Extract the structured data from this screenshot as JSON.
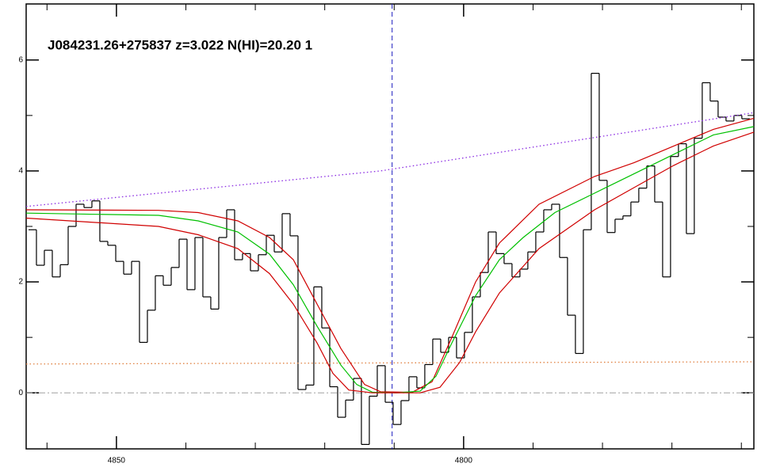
{
  "chart_data": {
    "type": "line",
    "title": "J084231.26+275837 z=3.022 N(HI)=20.20 1",
    "xlim": [
      4863,
      4758.2
    ],
    "ylim": [
      -1.01,
      7.01
    ],
    "xticks": [
      4850,
      4800
    ],
    "xminor": [
      4860,
      4840,
      4830,
      4820,
      4810,
      4790,
      4780,
      4770,
      4760
    ],
    "yticks": [
      0,
      2,
      4,
      6
    ],
    "yminor": [
      1,
      3,
      5
    ],
    "vline": {
      "x": 4810.3,
      "color": "#2020c0"
    },
    "hline": {
      "y": 0,
      "color": "#a0a0a0"
    },
    "series": [
      {
        "style": "steps",
        "color": "#000000",
        "x": [
          4862.09,
          4860.95,
          4859.81,
          4858.66,
          4857.52,
          4856.38,
          4855.24,
          4854.1,
          4852.96,
          4851.82,
          4850.67,
          4849.53,
          4848.39,
          4847.25,
          4846.11,
          4844.97,
          4843.83,
          4842.68,
          4841.54,
          4840.4,
          4839.26,
          4838.12,
          4836.98,
          4835.84,
          4834.69,
          4833.55,
          4832.41,
          4831.27,
          4830.13,
          4828.99,
          4827.84,
          4826.7,
          4825.56,
          4824.42,
          4823.28,
          4822.14,
          4821.0,
          4819.85,
          4818.71,
          4817.57,
          4816.43,
          4815.29,
          4814.15,
          4813.01,
          4811.86,
          4810.72,
          4809.58,
          4808.44,
          4807.3,
          4806.16,
          4805.02,
          4803.87,
          4802.73,
          4801.59,
          4800.45,
          4799.31,
          4798.17,
          4797.02,
          4795.88,
          4794.74,
          4793.6,
          4792.46,
          4791.32,
          4790.18,
          4789.03,
          4787.89,
          4786.75,
          4785.61,
          4784.47,
          4783.33,
          4782.19,
          4781.04,
          4779.9,
          4778.76,
          4777.62,
          4776.48,
          4775.34,
          4774.2,
          4773.05,
          4771.91,
          4770.77,
          4769.63,
          4768.49,
          4767.35,
          4766.21,
          4765.06,
          4763.92,
          4762.78,
          4761.64,
          4760.5,
          4759.36
        ],
        "values": [
          2.94,
          2.3,
          2.57,
          2.09,
          2.31,
          3.0,
          3.4,
          3.34,
          3.46,
          2.73,
          2.66,
          2.37,
          2.14,
          2.37,
          0.91,
          1.49,
          2.11,
          1.94,
          2.26,
          2.77,
          1.86,
          2.8,
          1.73,
          1.51,
          2.8,
          3.3,
          2.4,
          2.51,
          2.2,
          2.49,
          2.84,
          2.54,
          3.23,
          2.83,
          0.06,
          0.14,
          1.91,
          1.17,
          0.11,
          -0.44,
          -0.13,
          0.26,
          -0.93,
          -0.06,
          0.49,
          -0.17,
          -0.57,
          -0.14,
          0.29,
          0.09,
          0.51,
          0.97,
          0.73,
          1.0,
          0.63,
          1.09,
          1.73,
          2.17,
          2.9,
          2.51,
          2.33,
          2.09,
          2.23,
          2.54,
          2.9,
          3.3,
          3.4,
          2.44,
          1.4,
          0.71,
          2.94,
          5.76,
          3.83,
          2.89,
          3.13,
          3.19,
          3.44,
          3.69,
          4.09,
          3.44,
          2.09,
          4.26,
          4.49,
          2.87,
          4.59,
          5.59,
          5.26,
          4.97,
          4.9,
          5.0,
          4.94
        ]
      },
      {
        "style": "dotted",
        "color": "#8a2be2",
        "x": [
          4863,
          4811.97,
          4758.2
        ],
        "values": [
          3.36,
          4.0,
          5.05
        ]
      },
      {
        "style": "dotted",
        "color": "#e08040",
        "x": [
          4863,
          4758.2
        ],
        "values": [
          0.52,
          0.56
        ]
      },
      {
        "style": "solid",
        "color": "#d00000",
        "x": [
          4863,
          4843.94,
          4838.23,
          4832.52,
          4827.95,
          4824.53,
          4821.1,
          4817.68,
          4814.26,
          4811.97,
          4807.41,
          4804.55,
          4801.7,
          4798.27,
          4794.85,
          4789.14,
          4781.15,
          4775.44,
          4769.73,
          4764.03,
          4758.2
        ],
        "values": [
          3.3,
          3.29,
          3.25,
          3.1,
          2.8,
          2.4,
          1.6,
          0.8,
          0.15,
          0.02,
          0.01,
          0.2,
          1.0,
          2.0,
          2.7,
          3.4,
          3.9,
          4.15,
          4.45,
          4.75,
          4.95
        ]
      },
      {
        "style": "solid",
        "color": "#00c000",
        "x": [
          4863,
          4843.94,
          4838.23,
          4832.52,
          4827.95,
          4824.53,
          4821.1,
          4817.68,
          4815.4,
          4813.11,
          4809.69,
          4806.26,
          4803.98,
          4801.7,
          4798.27,
          4794.85,
          4791.42,
          4786.86,
          4781.15,
          4775.44,
          4769.73,
          4764.03,
          4758.2
        ],
        "values": [
          3.24,
          3.2,
          3.1,
          2.9,
          2.5,
          1.95,
          1.2,
          0.5,
          0.15,
          0.01,
          0.0,
          0.03,
          0.3,
          0.9,
          1.75,
          2.4,
          2.8,
          3.25,
          3.6,
          3.95,
          4.3,
          4.65,
          4.8
        ]
      },
      {
        "style": "solid",
        "color": "#d00000",
        "x": [
          4863,
          4843.94,
          4838.23,
          4832.52,
          4827.95,
          4824.53,
          4821.1,
          4818.82,
          4816.54,
          4813.11,
          4806.26,
          4803.41,
          4800.56,
          4798.27,
          4794.85,
          4789.14,
          4781.15,
          4775.44,
          4769.73,
          4764.03,
          4758.2
        ],
        "values": [
          3.15,
          3.0,
          2.85,
          2.6,
          2.15,
          1.6,
          0.9,
          0.35,
          0.05,
          0.0,
          0.0,
          0.1,
          0.55,
          1.1,
          1.8,
          2.6,
          3.3,
          3.7,
          4.1,
          4.45,
          4.7
        ]
      }
    ]
  }
}
